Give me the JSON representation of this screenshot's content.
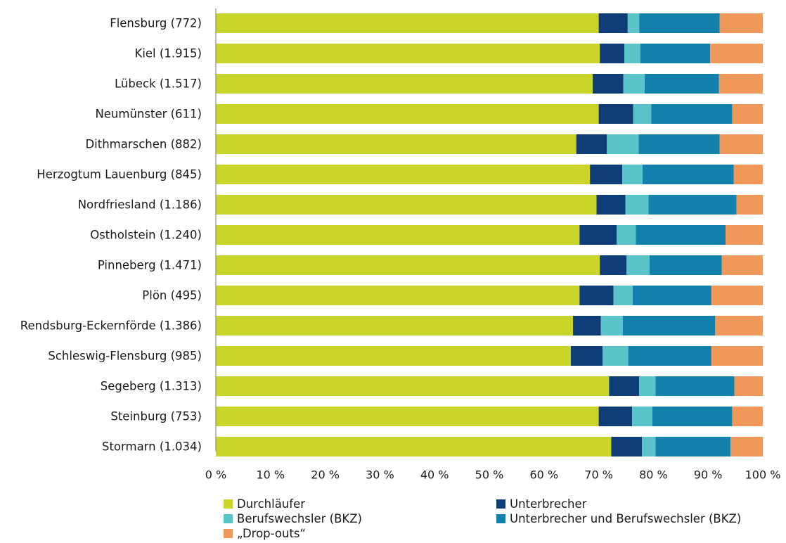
{
  "chart_data": {
    "type": "bar",
    "orientation": "horizontal",
    "stacked": true,
    "title": "",
    "xlabel": "",
    "ylabel": "",
    "xlim": [
      0,
      100
    ],
    "x_ticks": [
      "0 %",
      "10 %",
      "20 %",
      "30 %",
      "40 %",
      "50 %",
      "60 %",
      "70 %",
      "80 %",
      "90 %",
      "100 %"
    ],
    "grid": false,
    "legend_position": "bottom",
    "categories": [
      "Flensburg (772)",
      "Kiel (1.915)",
      "Lübeck (1.517)",
      "Neumünster (611)",
      "Dithmarschen (882)",
      "Herzogtum Lauenburg (845)",
      "Nordfriesland (1.186)",
      "Ostholstein (1.240)",
      "Pinneberg (1.471)",
      "Plön (495)",
      "Rendsburg-Eckernförde (1.386)",
      "Schleswig-Flensburg (985)",
      "Segeberg (1.313)",
      "Steinburg (753)",
      "Stormarn (1.034)"
    ],
    "series": [
      {
        "name": "Durchläufer",
        "color": "#c9d52b",
        "values": [
          70.0,
          70.2,
          68.9,
          70.0,
          65.9,
          68.4,
          69.6,
          66.5,
          70.2,
          66.5,
          65.3,
          64.9,
          71.9,
          70.0,
          72.3
        ]
      },
      {
        "name": "Unterbrecher",
        "color": "#0e3d78",
        "values": [
          5.3,
          4.5,
          5.6,
          6.3,
          5.6,
          5.9,
          5.3,
          6.8,
          4.9,
          6.2,
          5.1,
          5.8,
          5.5,
          6.1,
          5.6
        ]
      },
      {
        "name": "Berufswechsler (BKZ)",
        "color": "#5bc4c9",
        "values": [
          2.1,
          2.9,
          3.9,
          3.3,
          5.8,
          3.7,
          4.2,
          3.5,
          4.2,
          3.5,
          4.0,
          4.7,
          3.0,
          3.7,
          2.5
        ]
      },
      {
        "name": "Unterbrecher und Berufswechsler (BKZ)",
        "color": "#1281ab",
        "values": [
          14.7,
          12.8,
          13.6,
          14.8,
          14.8,
          16.7,
          16.1,
          16.4,
          13.2,
          14.4,
          16.9,
          15.2,
          14.4,
          14.6,
          13.7
        ]
      },
      {
        "name": "„Drop-outs“",
        "color": "#f0975a",
        "values": [
          7.9,
          9.6,
          8.0,
          5.6,
          7.9,
          5.3,
          4.8,
          6.8,
          7.5,
          9.4,
          8.7,
          9.4,
          5.2,
          5.6,
          5.9
        ]
      }
    ]
  }
}
